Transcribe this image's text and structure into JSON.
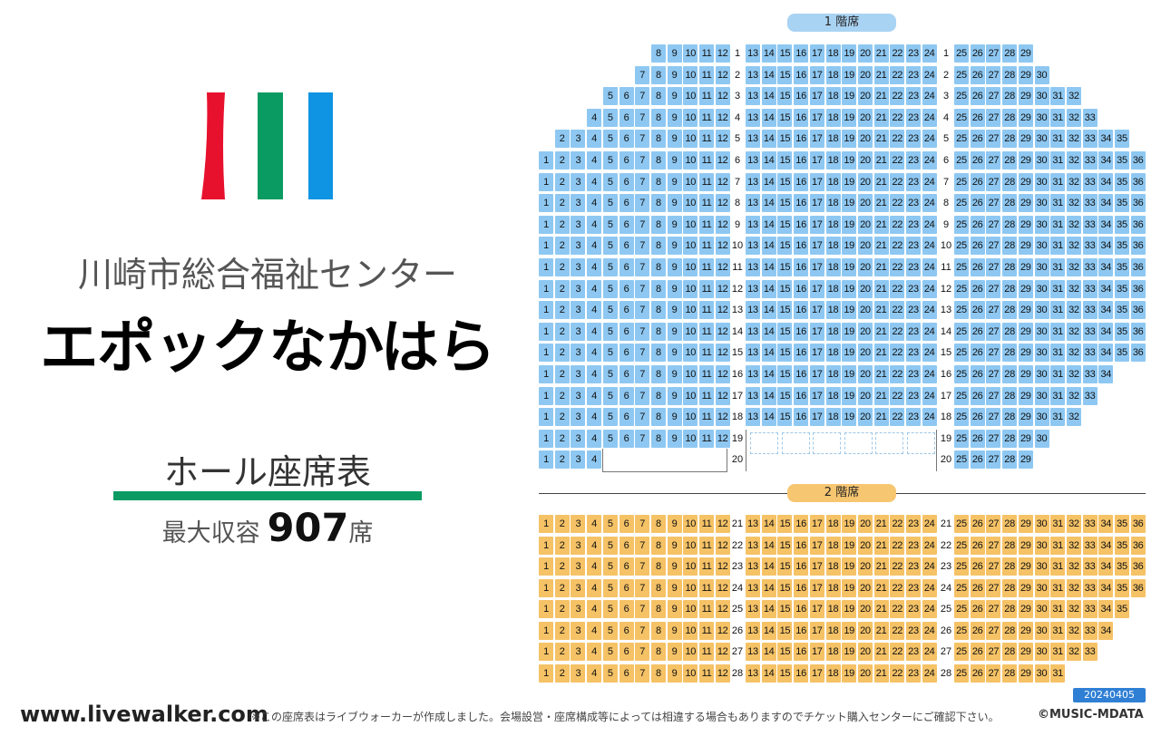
{
  "venue": {
    "name_line1": "川崎市総合福祉センター",
    "name_line2": "エポックなかはら"
  },
  "chart_title": "ホール座席表",
  "capacity": {
    "label": "最大収容",
    "number": "907",
    "unit": "席"
  },
  "floors": {
    "floor1": "1 階席",
    "floor2": "2 階席"
  },
  "footer": {
    "site": "www.livewalker.com",
    "note": "※この座席表はライブウォーカーが作成しました。会場設営・座席構成等によっては相違する場合もありますのでチケット購入センターにご確認下さい。",
    "date": "20240405",
    "copyright": "©MUSIC-MDATA"
  },
  "colors": {
    "floor1_seat": "#8ec8f2",
    "floor2_seat": "#f5c266",
    "logo_red": "#e8112d",
    "logo_green": "#0a9b62",
    "logo_blue": "#0e94e2",
    "date_badge": "#2f7fd4"
  },
  "seat_rows": [
    {
      "row": 1,
      "floor": 1,
      "left": [
        8,
        12
      ],
      "center": true,
      "right": [
        25,
        29
      ]
    },
    {
      "row": 2,
      "floor": 1,
      "left": [
        7,
        12
      ],
      "center": true,
      "right": [
        25,
        30
      ]
    },
    {
      "row": 3,
      "floor": 1,
      "left": [
        5,
        12
      ],
      "center": true,
      "right": [
        25,
        32
      ]
    },
    {
      "row": 4,
      "floor": 1,
      "left": [
        4,
        12
      ],
      "center": true,
      "right": [
        25,
        33
      ]
    },
    {
      "row": 5,
      "floor": 1,
      "left": [
        2,
        12
      ],
      "center": true,
      "right": [
        25,
        35
      ]
    },
    {
      "row": 6,
      "floor": 1,
      "left": [
        1,
        12
      ],
      "center": true,
      "right": [
        25,
        36
      ]
    },
    {
      "row": 7,
      "floor": 1,
      "left": [
        1,
        12
      ],
      "center": true,
      "right": [
        25,
        36
      ]
    },
    {
      "row": 8,
      "floor": 1,
      "left": [
        1,
        12
      ],
      "center": true,
      "right": [
        25,
        36
      ]
    },
    {
      "row": 9,
      "floor": 1,
      "left": [
        1,
        12
      ],
      "center": true,
      "right": [
        25,
        36
      ]
    },
    {
      "row": 10,
      "floor": 1,
      "left": [
        1,
        12
      ],
      "center": true,
      "right": [
        25,
        36
      ]
    },
    {
      "row": 11,
      "floor": 1,
      "left": [
        1,
        12
      ],
      "center": true,
      "right": [
        25,
        36
      ]
    },
    {
      "row": 12,
      "floor": 1,
      "left": [
        1,
        12
      ],
      "center": true,
      "right": [
        25,
        36
      ]
    },
    {
      "row": 13,
      "floor": 1,
      "left": [
        1,
        12
      ],
      "center": true,
      "right": [
        25,
        36
      ]
    },
    {
      "row": 14,
      "floor": 1,
      "left": [
        1,
        12
      ],
      "center": true,
      "right": [
        25,
        36
      ]
    },
    {
      "row": 15,
      "floor": 1,
      "left": [
        1,
        12
      ],
      "center": true,
      "right": [
        25,
        36
      ]
    },
    {
      "row": 16,
      "floor": 1,
      "left": [
        1,
        12
      ],
      "center": true,
      "right": [
        25,
        34
      ]
    },
    {
      "row": 17,
      "floor": 1,
      "left": [
        1,
        12
      ],
      "center": true,
      "right": [
        25,
        33
      ]
    },
    {
      "row": 18,
      "floor": 1,
      "left": [
        1,
        12
      ],
      "center": true,
      "right": [
        25,
        32
      ]
    },
    {
      "row": 19,
      "floor": 1,
      "left": [
        1,
        12
      ],
      "center": false,
      "right": [
        25,
        30
      ]
    },
    {
      "row": 20,
      "floor": 1,
      "left": [
        1,
        4
      ],
      "center": false,
      "right": [
        25,
        29
      ]
    },
    {
      "row": 21,
      "floor": 2,
      "left": [
        1,
        12
      ],
      "center": true,
      "right": [
        25,
        36
      ]
    },
    {
      "row": 22,
      "floor": 2,
      "left": [
        1,
        12
      ],
      "center": true,
      "right": [
        25,
        36
      ]
    },
    {
      "row": 23,
      "floor": 2,
      "left": [
        1,
        12
      ],
      "center": true,
      "right": [
        25,
        36
      ]
    },
    {
      "row": 24,
      "floor": 2,
      "left": [
        1,
        12
      ],
      "center": true,
      "right": [
        25,
        36
      ]
    },
    {
      "row": 25,
      "floor": 2,
      "left": [
        1,
        12
      ],
      "center": true,
      "right": [
        25,
        35
      ]
    },
    {
      "row": 26,
      "floor": 2,
      "left": [
        1,
        12
      ],
      "center": true,
      "right": [
        25,
        34
      ]
    },
    {
      "row": 27,
      "floor": 2,
      "left": [
        1,
        12
      ],
      "center": true,
      "right": [
        25,
        33
      ]
    },
    {
      "row": 28,
      "floor": 2,
      "left": [
        1,
        12
      ],
      "center": true,
      "right": [
        25,
        31
      ]
    }
  ]
}
